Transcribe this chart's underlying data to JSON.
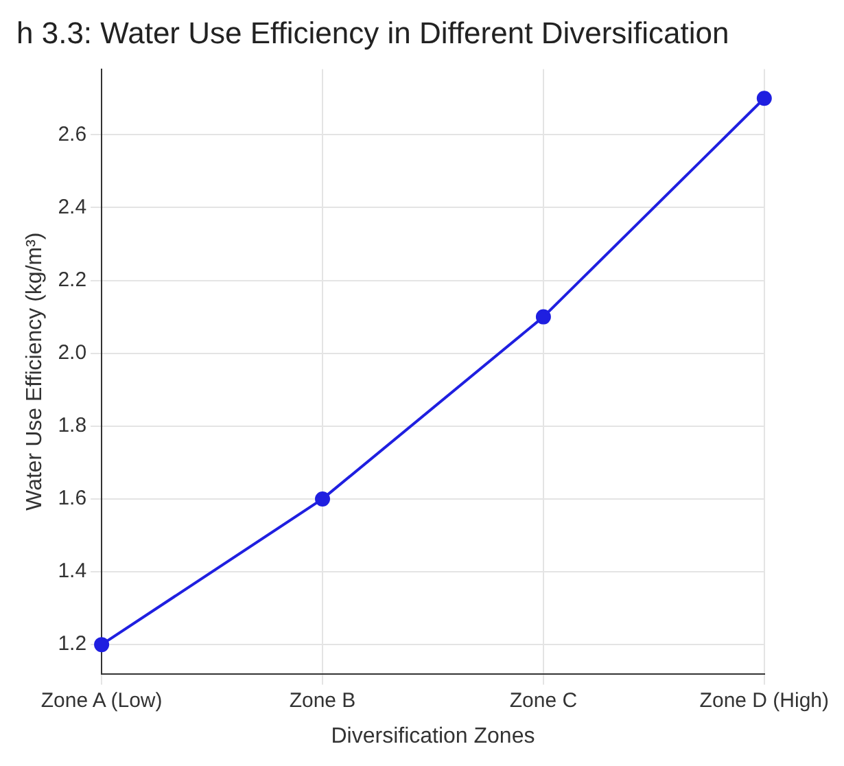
{
  "chart_data": {
    "type": "line",
    "title": "h 3.3: Water Use Efficiency in Different Diversification",
    "xlabel": "Diversification Zones",
    "ylabel": "Water Use Efficiency (kg/m³)",
    "categories": [
      "Zone A (Low)",
      "Zone B",
      "Zone C",
      "Zone D (High)"
    ],
    "series": [
      {
        "color": "#1f1fe0",
        "values": [
          1.2,
          1.6,
          2.1,
          2.7
        ]
      }
    ],
    "ylim": [
      1.12,
      2.78
    ],
    "yticks": [
      {
        "value": 1.2,
        "label": "1.2"
      },
      {
        "value": 1.4,
        "label": "1.4"
      },
      {
        "value": 1.6,
        "label": "1.6"
      },
      {
        "value": 1.8,
        "label": "1.8"
      },
      {
        "value": 2.0,
        "label": "2.0"
      },
      {
        "value": 2.2,
        "label": "2.2"
      },
      {
        "value": 2.4,
        "label": "2.4"
      },
      {
        "value": 2.6,
        "label": "2.6"
      }
    ],
    "grid": true,
    "marker": "circle",
    "line_style": "solid",
    "legend": false
  }
}
